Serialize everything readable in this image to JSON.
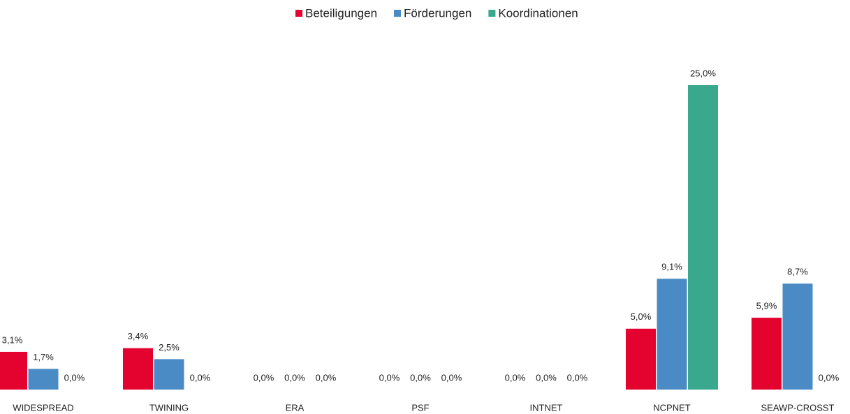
{
  "chart_data": {
    "type": "bar",
    "categories": [
      "WIDESPREAD",
      "TWINING",
      "ERA",
      "PSF",
      "INTNET",
      "NCPNET",
      "SEAWP-CROSST"
    ],
    "series": [
      {
        "name": "Beteiligungen",
        "color": "#e4032e",
        "values": [
          3.1,
          3.4,
          0,
          0,
          0,
          5.0,
          5.9
        ],
        "value_labels": [
          "3,1%",
          "3,4%",
          "0,0%",
          "0,0%",
          "0,0%",
          "5,0%",
          "5,9%"
        ]
      },
      {
        "name": "Förderungen",
        "color": "#4a8bc6",
        "values": [
          1.7,
          2.5,
          0,
          0,
          0,
          9.1,
          8.7
        ],
        "value_labels": [
          "1,7%",
          "2,5%",
          "0,0%",
          "0,0%",
          "0,0%",
          "9,1%",
          "8,7%"
        ]
      },
      {
        "name": "Koordinationen",
        "color": "#3aa88d",
        "values": [
          0,
          0,
          0,
          0,
          0,
          25.0,
          0
        ],
        "value_labels": [
          "0,0%",
          "0,0%",
          "0,0%",
          "0,0%",
          "0,0%",
          "25,0%",
          "0,0%"
        ]
      }
    ],
    "ylim": [
      0,
      25
    ],
    "legend": "top"
  }
}
